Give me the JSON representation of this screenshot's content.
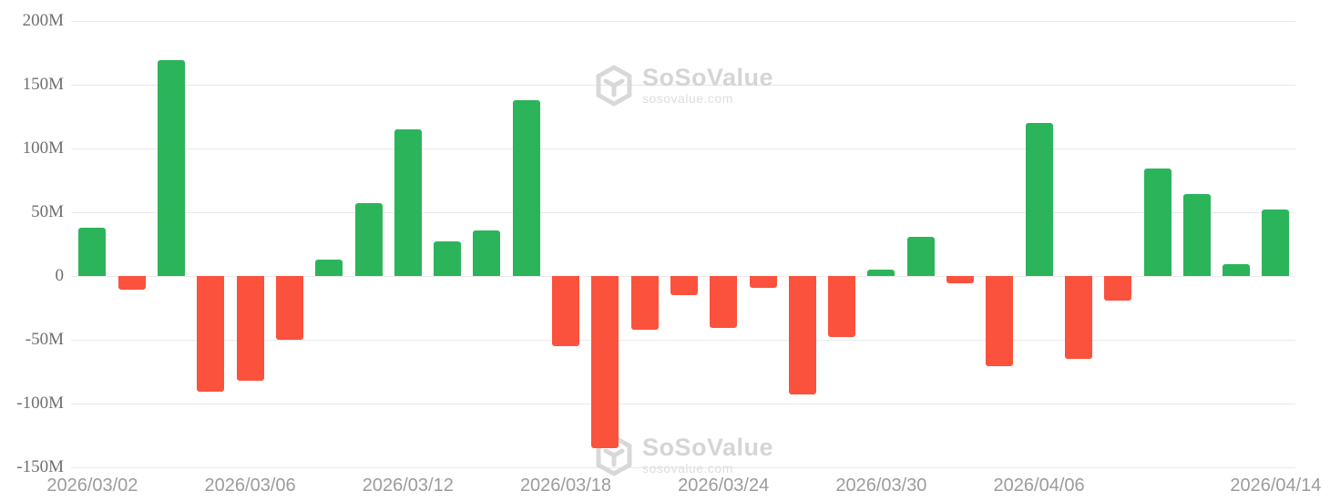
{
  "chart_data": {
    "type": "bar",
    "title": "",
    "unit": "M = millions (USD net flow)",
    "values_in_millions": [
      38,
      -11,
      169,
      -91,
      -82,
      -50,
      13,
      57,
      115,
      27,
      36,
      138,
      -55,
      -135,
      -42,
      -15,
      -41,
      -9,
      -93,
      -48,
      5,
      31,
      -6,
      -71,
      120,
      -65,
      -19,
      84,
      64,
      9,
      52
    ],
    "bar_count": 31,
    "x_tick_labels": [
      {
        "label": "2026/03/02",
        "bar_index": 0
      },
      {
        "label": "2026/03/06",
        "bar_index": 4
      },
      {
        "label": "2026/03/12",
        "bar_index": 8
      },
      {
        "label": "2026/03/18",
        "bar_index": 12
      },
      {
        "label": "2026/03/24",
        "bar_index": 16
      },
      {
        "label": "2026/03/30",
        "bar_index": 20
      },
      {
        "label": "2026/04/06",
        "bar_index": 24
      },
      {
        "label": "2026/04/14",
        "bar_index": 30
      }
    ],
    "y_tick_labels": [
      {
        "label": "200M",
        "value": 200
      },
      {
        "label": "150M",
        "value": 150
      },
      {
        "label": "100M",
        "value": 100
      },
      {
        "label": "50M",
        "value": 50
      },
      {
        "label": "0",
        "value": 0
      },
      {
        "label": "-50M",
        "value": -50
      },
      {
        "label": "-100M",
        "value": -100
      },
      {
        "label": "-150M",
        "value": -150
      }
    ],
    "ylim": [
      -150,
      200
    ],
    "grid": true,
    "legend": false,
    "positive_color": "#2cb45a",
    "negative_color": "#fa523d",
    "grid_color": "#e9e9e9",
    "y_label_color": "#6f6f6f",
    "x_label_color": "#9c9c9c"
  },
  "watermark": {
    "brand": "SoSoValue",
    "site": "sosovalue.com"
  }
}
